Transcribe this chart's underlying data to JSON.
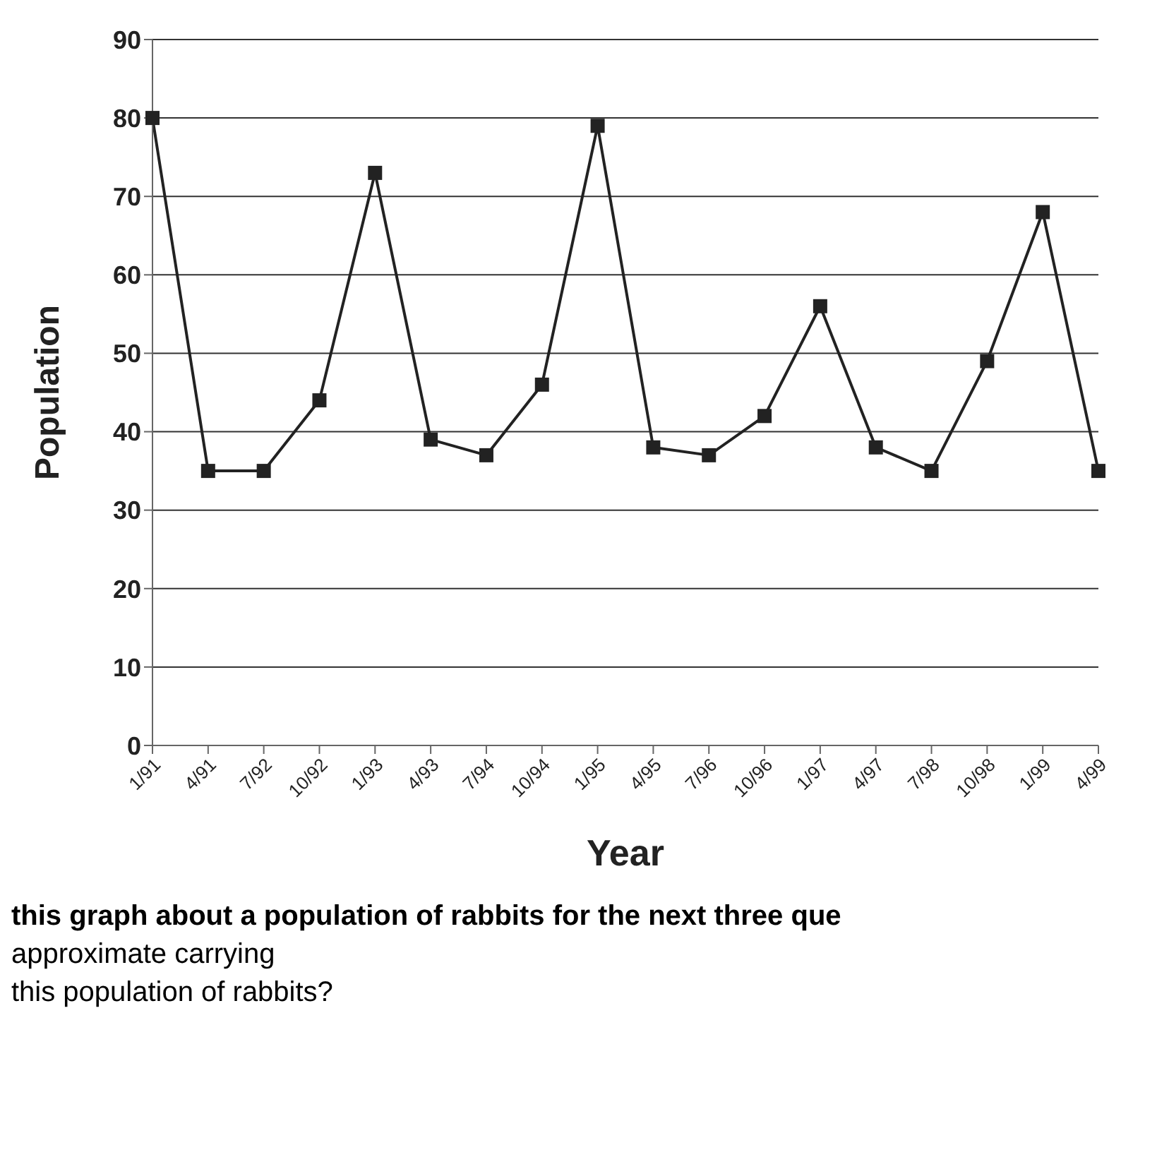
{
  "chart_data": {
    "type": "line",
    "xlabel": "Year",
    "ylabel": "Population",
    "categories": [
      "1/91",
      "4/91",
      "7/92",
      "10/92",
      "1/93",
      "4/93",
      "7/94",
      "10/94",
      "1/95",
      "4/95",
      "7/96",
      "10/96",
      "1/97",
      "4/97",
      "7/98",
      "10/98",
      "1/99",
      "4/99"
    ],
    "values": [
      80,
      35,
      35,
      44,
      73,
      39,
      37,
      46,
      79,
      38,
      37,
      42,
      56,
      38,
      35,
      49,
      68,
      35
    ],
    "color": "#222222",
    "marker": "square",
    "line_style": "solid",
    "grid": "y",
    "ylim": [
      0,
      90
    ],
    "yticks": [
      0,
      10,
      20,
      30,
      40,
      50,
      60,
      70,
      80,
      90
    ],
    "annotations": [
      "this graph about a population of rabbits for the next three que",
      "approximate carrying",
      "this population of rabbits?"
    ]
  }
}
